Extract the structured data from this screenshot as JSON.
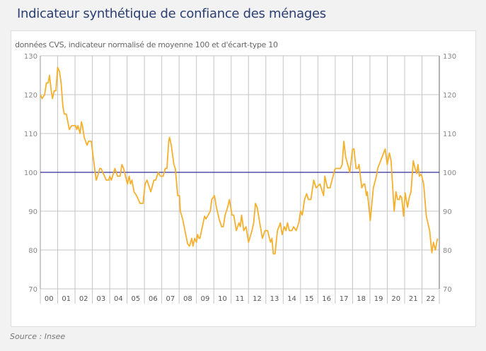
{
  "title": "Indicateur synthétique de confiance des ménages",
  "source": "Source : Insee",
  "colors": {
    "line": "#f5b02e",
    "reference": "#2e2e96",
    "grid": "#c4c4c4",
    "title": "#2b3f72"
  },
  "chart_data": {
    "type": "line",
    "title": "Indicateur synthétique de confiance des ménages",
    "subtitle": "données CVS, indicateur normalisé de moyenne 100 et d'écart-type 10",
    "xlabel": "",
    "ylabel": "",
    "xlim": [
      2000,
      2023
    ],
    "ylim": [
      70,
      130
    ],
    "yticks": [
      "70",
      "80",
      "90",
      "100",
      "110",
      "120",
      "130"
    ],
    "xtick_labels": [
      "00",
      "01",
      "02",
      "03",
      "04",
      "05",
      "06",
      "07",
      "08",
      "09",
      "10",
      "11",
      "12",
      "13",
      "14",
      "15",
      "16",
      "17",
      "18",
      "19",
      "20",
      "21",
      "22"
    ],
    "grid": true,
    "reference_line": {
      "value": 100
    },
    "series": [
      {
        "name": "Indicateur synthétique",
        "points": [
          [
            2000.0,
            120
          ],
          [
            2000.1,
            119
          ],
          [
            2000.25,
            120
          ],
          [
            2000.35,
            123
          ],
          [
            2000.45,
            123
          ],
          [
            2000.53,
            125
          ],
          [
            2000.63,
            121
          ],
          [
            2000.7,
            119
          ],
          [
            2000.8,
            121
          ],
          [
            2000.9,
            121
          ],
          [
            2001.0,
            127
          ],
          [
            2001.1,
            126
          ],
          [
            2001.2,
            123
          ],
          [
            2001.3,
            117
          ],
          [
            2001.38,
            115
          ],
          [
            2001.5,
            115
          ],
          [
            2001.67,
            111
          ],
          [
            2001.8,
            112
          ],
          [
            2002.04,
            112
          ],
          [
            2002.1,
            111
          ],
          [
            2002.17,
            112
          ],
          [
            2002.29,
            110
          ],
          [
            2002.37,
            113
          ],
          [
            2002.43,
            112
          ],
          [
            2002.53,
            109
          ],
          [
            2002.69,
            107
          ],
          [
            2002.78,
            108
          ],
          [
            2002.94,
            108
          ],
          [
            2003.06,
            103.5
          ],
          [
            2003.22,
            98
          ],
          [
            2003.3,
            99
          ],
          [
            2003.43,
            101
          ],
          [
            2003.5,
            101
          ],
          [
            2003.8,
            98
          ],
          [
            2003.95,
            98
          ],
          [
            2004.0,
            99
          ],
          [
            2004.1,
            98
          ],
          [
            2004.3,
            101
          ],
          [
            2004.45,
            99
          ],
          [
            2004.6,
            99
          ],
          [
            2004.7,
            102
          ],
          [
            2004.8,
            101
          ],
          [
            2005.02,
            97
          ],
          [
            2005.12,
            99
          ],
          [
            2005.2,
            97
          ],
          [
            2005.28,
            98
          ],
          [
            2005.4,
            95
          ],
          [
            2005.55,
            94
          ],
          [
            2005.75,
            92
          ],
          [
            2005.92,
            92
          ],
          [
            2006.04,
            97
          ],
          [
            2006.15,
            98
          ],
          [
            2006.37,
            95
          ],
          [
            2006.55,
            98
          ],
          [
            2006.65,
            98
          ],
          [
            2006.8,
            100
          ],
          [
            2006.92,
            99
          ],
          [
            2007.08,
            99
          ],
          [
            2007.2,
            101
          ],
          [
            2007.3,
            101
          ],
          [
            2007.4,
            108
          ],
          [
            2007.45,
            109
          ],
          [
            2007.55,
            107
          ],
          [
            2007.7,
            102
          ],
          [
            2007.78,
            101
          ],
          [
            2007.92,
            94
          ],
          [
            2008.02,
            94
          ],
          [
            2008.07,
            90
          ],
          [
            2008.2,
            88
          ],
          [
            2008.49,
            81.6
          ],
          [
            2008.6,
            81
          ],
          [
            2008.73,
            83
          ],
          [
            2008.8,
            81
          ],
          [
            2008.9,
            83
          ],
          [
            2009.0,
            82
          ],
          [
            2009.06,
            84
          ],
          [
            2009.15,
            83
          ],
          [
            2009.2,
            83
          ],
          [
            2009.47,
            88.7
          ],
          [
            2009.55,
            88
          ],
          [
            2009.8,
            90
          ],
          [
            2009.88,
            93
          ],
          [
            2010.04,
            94
          ],
          [
            2010.15,
            91
          ],
          [
            2010.33,
            87.6
          ],
          [
            2010.45,
            86
          ],
          [
            2010.55,
            86
          ],
          [
            2010.65,
            89
          ],
          [
            2010.8,
            91
          ],
          [
            2010.9,
            93
          ],
          [
            2011.05,
            89
          ],
          [
            2011.15,
            89
          ],
          [
            2011.3,
            85
          ],
          [
            2011.45,
            87
          ],
          [
            2011.53,
            86
          ],
          [
            2011.6,
            89
          ],
          [
            2011.73,
            85
          ],
          [
            2011.86,
            86
          ],
          [
            2012.0,
            82
          ],
          [
            2012.2,
            85
          ],
          [
            2012.3,
            87
          ],
          [
            2012.4,
            92
          ],
          [
            2012.5,
            91
          ],
          [
            2012.65,
            87
          ],
          [
            2012.8,
            83
          ],
          [
            2012.95,
            85
          ],
          [
            2013.1,
            85
          ],
          [
            2013.27,
            82
          ],
          [
            2013.35,
            83
          ],
          [
            2013.43,
            79
          ],
          [
            2013.53,
            79
          ],
          [
            2013.67,
            85
          ],
          [
            2013.84,
            87
          ],
          [
            2013.94,
            84
          ],
          [
            2014.07,
            86
          ],
          [
            2014.16,
            85
          ],
          [
            2014.25,
            87
          ],
          [
            2014.35,
            85
          ],
          [
            2014.5,
            85
          ],
          [
            2014.6,
            86
          ],
          [
            2014.75,
            85
          ],
          [
            2014.9,
            87
          ],
          [
            2015.0,
            90
          ],
          [
            2015.1,
            89
          ],
          [
            2015.23,
            93
          ],
          [
            2015.35,
            94.5
          ],
          [
            2015.45,
            93
          ],
          [
            2015.6,
            93
          ],
          [
            2015.76,
            98
          ],
          [
            2015.9,
            96
          ],
          [
            2016.12,
            97
          ],
          [
            2016.33,
            94
          ],
          [
            2016.4,
            99
          ],
          [
            2016.55,
            96
          ],
          [
            2016.7,
            96
          ],
          [
            2016.98,
            100.8
          ],
          [
            2017.06,
            101
          ],
          [
            2017.3,
            101
          ],
          [
            2017.4,
            102
          ],
          [
            2017.5,
            108
          ],
          [
            2017.6,
            104
          ],
          [
            2017.84,
            100
          ],
          [
            2018.0,
            106
          ],
          [
            2018.08,
            106
          ],
          [
            2018.2,
            101
          ],
          [
            2018.3,
            101
          ],
          [
            2018.37,
            102
          ],
          [
            2018.53,
            96
          ],
          [
            2018.64,
            97
          ],
          [
            2018.7,
            97
          ],
          [
            2018.8,
            94
          ],
          [
            2018.85,
            95
          ],
          [
            2019.02,
            87.6
          ],
          [
            2019.2,
            96
          ],
          [
            2019.37,
            99
          ],
          [
            2019.45,
            101
          ],
          [
            2019.88,
            106
          ],
          [
            2020.0,
            102
          ],
          [
            2020.12,
            105
          ],
          [
            2020.22,
            103
          ],
          [
            2020.4,
            90
          ],
          [
            2020.5,
            95
          ],
          [
            2020.6,
            93
          ],
          [
            2020.7,
            93
          ],
          [
            2020.74,
            94
          ],
          [
            2020.83,
            93.5
          ],
          [
            2020.94,
            88.7
          ],
          [
            2021.03,
            94.7
          ],
          [
            2021.17,
            91
          ],
          [
            2021.27,
            93.6
          ],
          [
            2021.37,
            95
          ],
          [
            2021.5,
            103
          ],
          [
            2021.6,
            101
          ],
          [
            2021.7,
            99.7
          ],
          [
            2021.77,
            102
          ],
          [
            2021.85,
            99
          ],
          [
            2021.92,
            99.5
          ],
          [
            2021.99,
            99
          ],
          [
            2022.1,
            97
          ],
          [
            2022.25,
            88.7
          ],
          [
            2022.44,
            85
          ],
          [
            2022.57,
            79.3
          ],
          [
            2022.66,
            82
          ],
          [
            2022.77,
            80
          ],
          [
            2022.9,
            83
          ]
        ]
      }
    ]
  }
}
